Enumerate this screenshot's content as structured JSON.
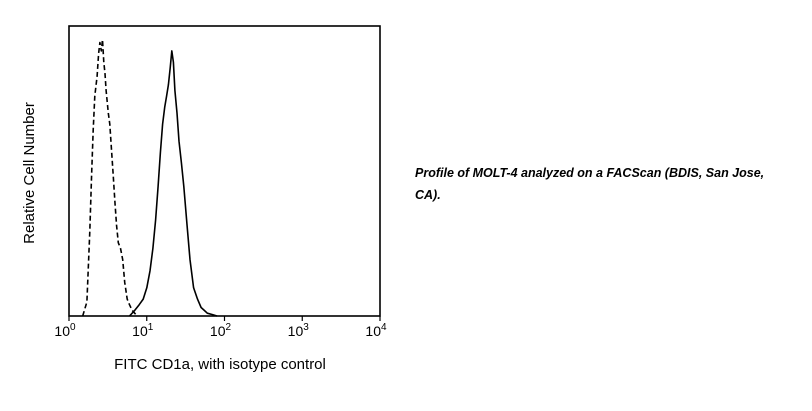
{
  "chart_data": {
    "type": "area",
    "title": "",
    "xlabel": "FITC CD1a, with isotype control",
    "ylabel": "Relative Cell Number",
    "x_scale": "log",
    "xlim": [
      1,
      10000
    ],
    "ylim": [
      0,
      1
    ],
    "grid": false,
    "legend": "none",
    "x_ticks": [
      {
        "base": "10",
        "exp": "0",
        "value": 1
      },
      {
        "base": "10",
        "exp": "1",
        "value": 10
      },
      {
        "base": "10",
        "exp": "2",
        "value": 100
      },
      {
        "base": "10",
        "exp": "3",
        "value": 1000
      },
      {
        "base": "10",
        "exp": "4",
        "value": 10000
      }
    ],
    "series": [
      {
        "style": "dashed",
        "color": "#000000",
        "x": [
          1.5,
          1.7,
          1.85,
          1.95,
          2.05,
          2.15,
          2.3,
          2.4,
          2.5,
          2.6,
          2.7,
          2.8,
          2.9,
          3.0,
          3.1,
          3.2,
          3.35,
          3.5,
          3.7,
          3.9,
          4.1,
          4.3,
          4.6,
          4.9,
          5.2,
          5.6,
          6.0,
          6.5,
          7.0,
          7.5
        ],
        "y": [
          0.0,
          0.05,
          0.3,
          0.5,
          0.66,
          0.78,
          0.85,
          0.93,
          0.97,
          0.94,
          0.98,
          0.9,
          0.86,
          0.8,
          0.76,
          0.72,
          0.68,
          0.6,
          0.5,
          0.4,
          0.32,
          0.26,
          0.24,
          0.2,
          0.12,
          0.06,
          0.04,
          0.02,
          0.01,
          0.0
        ]
      },
      {
        "style": "solid",
        "color": "#000000",
        "x": [
          6.0,
          7.0,
          8.0,
          9.0,
          10.0,
          11.0,
          12.0,
          13.0,
          14.0,
          15.0,
          16.0,
          17.0,
          18.0,
          19.0,
          20.0,
          21.0,
          22.0,
          23.0,
          24.5,
          26.0,
          28.0,
          30.0,
          33.0,
          36.0,
          40.0,
          45.0,
          50.0,
          55.0,
          60.0,
          70.0,
          80.0
        ],
        "y": [
          0.0,
          0.02,
          0.04,
          0.06,
          0.1,
          0.16,
          0.24,
          0.34,
          0.46,
          0.58,
          0.68,
          0.74,
          0.78,
          0.82,
          0.88,
          0.94,
          0.9,
          0.8,
          0.72,
          0.62,
          0.54,
          0.46,
          0.32,
          0.2,
          0.1,
          0.06,
          0.03,
          0.02,
          0.01,
          0.005,
          0.0
        ]
      }
    ]
  },
  "caption": "Profile of MOLT-4 analyzed on a FACScan (BDIS, San Jose, CA)."
}
